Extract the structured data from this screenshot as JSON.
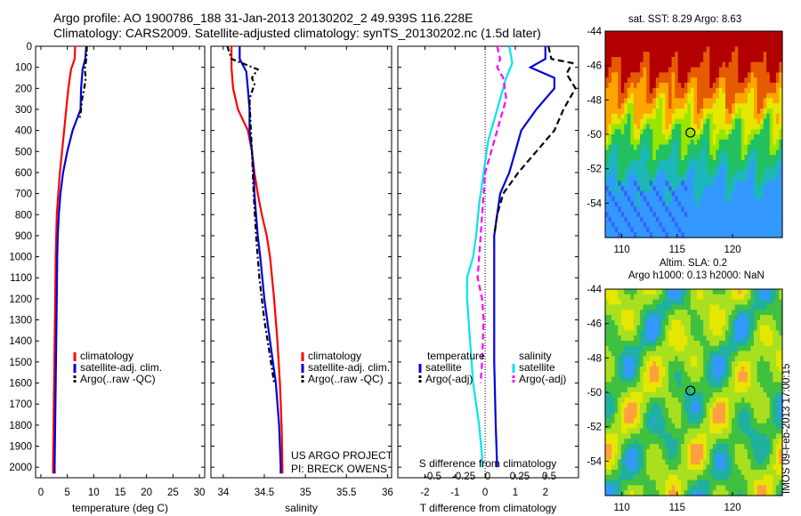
{
  "title_line1": "Argo profile: AO 1900786_188 31-Jan-2013 20130202_2 49.939S 116.228E",
  "title_line2": "Climatology: CARS2009. Satellite-adjusted climatology: synTS_20130202.nc (1.5d later)",
  "sst_title": "sat. SST: 8.29 Argo: 8.63",
  "sla_title1": "Altim. SLA: 0.2",
  "sla_title2": "Argo h1000: 0.13 h2000: NaN",
  "side_text": "IMOS 09-Feb-2013 17:00:15",
  "pi_line1": "US ARGO PROJECT",
  "pi_line2": "PI: BRECK OWENS",
  "colors": {
    "climatology": "#ff0000",
    "satellite": "#0000dd",
    "argo": "#000000",
    "sat_salinity": "#00e5ee",
    "argo_salinity": "#ff00ff"
  },
  "chart_data": [
    {
      "type": "line",
      "xlabel": "temperature (deg C)",
      "xticks": [
        0,
        5,
        10,
        15,
        20,
        25,
        30
      ],
      "xlim": [
        -1,
        31
      ],
      "ylim": [
        2050,
        0
      ],
      "yticks": [
        0,
        100,
        200,
        300,
        400,
        500,
        600,
        700,
        800,
        900,
        1000,
        1100,
        1200,
        1300,
        1400,
        1500,
        1600,
        1700,
        1800,
        1900,
        2000
      ],
      "legend": [
        "climatology",
        "satellite-adj. clim.",
        "Argo(..raw -QC)"
      ],
      "series": [
        {
          "name": "climatology",
          "color": "#ff0000",
          "dash": "",
          "points": [
            [
              6.5,
              0
            ],
            [
              6.4,
              60
            ],
            [
              5.7,
              110
            ],
            [
              5.2,
              200
            ],
            [
              4.8,
              300
            ],
            [
              4.4,
              400
            ],
            [
              4.0,
              500
            ],
            [
              3.6,
              600
            ],
            [
              3.3,
              700
            ],
            [
              3.0,
              800
            ],
            [
              2.9,
              900
            ],
            [
              2.8,
              1000
            ],
            [
              2.7,
              1200
            ],
            [
              2.6,
              1400
            ],
            [
              2.5,
              1600
            ],
            [
              2.4,
              1800
            ],
            [
              2.3,
              2000
            ],
            [
              2.3,
              2030
            ]
          ]
        },
        {
          "name": "satellite-adj. clim.",
          "color": "#0000dd",
          "dash": "",
          "points": [
            [
              8.6,
              0
            ],
            [
              8.4,
              60
            ],
            [
              7.9,
              110
            ],
            [
              7.6,
              200
            ],
            [
              7.5,
              300
            ],
            [
              6.0,
              400
            ],
            [
              5.0,
              500
            ],
            [
              4.2,
              600
            ],
            [
              3.7,
              700
            ],
            [
              3.4,
              800
            ],
            [
              3.2,
              900
            ],
            [
              3.1,
              1000
            ],
            [
              3.0,
              1200
            ],
            [
              2.9,
              1400
            ],
            [
              2.8,
              1600
            ],
            [
              2.7,
              1800
            ],
            [
              2.6,
              2000
            ],
            [
              2.6,
              2030
            ]
          ]
        },
        {
          "name": "Argo(..raw -QC)",
          "color": "#000000",
          "dash": "6,3,2,3",
          "points": [
            [
              8.7,
              0
            ],
            [
              8.6,
              60
            ],
            [
              8.3,
              110
            ],
            [
              8.5,
              150
            ],
            [
              8.2,
              200
            ],
            [
              7.8,
              250
            ],
            [
              7.6,
              300
            ],
            [
              7.3,
              350
            ]
          ]
        }
      ]
    },
    {
      "type": "line",
      "xlabel": "salinity",
      "xticks": [
        34,
        34.5,
        35,
        35.5,
        36
      ],
      "xtick_labels": [
        "34",
        "34.5",
        "35",
        "35.5",
        "36"
      ],
      "xlim": [
        33.85,
        36.05
      ],
      "ylim": [
        2050,
        0
      ],
      "legend": [
        "climatology",
        "satellite-adj. clim.",
        "Argo(..raw -QC)"
      ],
      "series": [
        {
          "name": "climatology",
          "color": "#ff0000",
          "dash": "",
          "points": [
            [
              34.1,
              0
            ],
            [
              34.1,
              100
            ],
            [
              34.12,
              200
            ],
            [
              34.18,
              300
            ],
            [
              34.3,
              400
            ],
            [
              34.35,
              500
            ],
            [
              34.38,
              600
            ],
            [
              34.42,
              700
            ],
            [
              34.47,
              800
            ],
            [
              34.53,
              900
            ],
            [
              34.57,
              1000
            ],
            [
              34.62,
              1200
            ],
            [
              34.66,
              1400
            ],
            [
              34.69,
              1600
            ],
            [
              34.71,
              1800
            ],
            [
              34.72,
              2000
            ],
            [
              34.72,
              2030
            ]
          ]
        },
        {
          "name": "satellite-adj. clim.",
          "color": "#0000dd",
          "dash": "",
          "points": [
            [
              34.2,
              0
            ],
            [
              34.2,
              60
            ],
            [
              34.28,
              120
            ],
            [
              34.3,
              200
            ],
            [
              34.32,
              300
            ],
            [
              34.32,
              400
            ],
            [
              34.35,
              500
            ],
            [
              34.37,
              600
            ],
            [
              34.38,
              700
            ],
            [
              34.4,
              800
            ],
            [
              34.42,
              900
            ],
            [
              34.45,
              1000
            ],
            [
              34.5,
              1200
            ],
            [
              34.57,
              1400
            ],
            [
              34.64,
              1600
            ],
            [
              34.68,
              1800
            ],
            [
              34.7,
              2000
            ],
            [
              34.7,
              2030
            ]
          ]
        },
        {
          "name": "Argo(..raw -QC)",
          "color": "#000000",
          "dash": "6,3,2,3",
          "points": [
            [
              34.05,
              0
            ],
            [
              34.1,
              60
            ],
            [
              34.42,
              110
            ],
            [
              34.35,
              150
            ],
            [
              34.38,
              180
            ],
            [
              34.32,
              250
            ],
            [
              34.33,
              350
            ],
            [
              34.35,
              500
            ],
            [
              34.37,
              700
            ],
            [
              34.4,
              900
            ],
            [
              34.44,
              1100
            ],
            [
              34.5,
              1300
            ],
            [
              34.58,
              1500
            ],
            [
              34.62,
              1600
            ]
          ]
        }
      ]
    },
    {
      "type": "line",
      "xlabel": "T difference from climatology",
      "xticks": [
        -2,
        -1,
        0,
        1,
        2
      ],
      "xlim": [
        -2.9,
        3.1
      ],
      "second_xlabel": "S difference from climatology",
      "second_xticks": [
        "-0.5",
        "-0.25",
        "0",
        "0.25",
        "0.5"
      ],
      "ylim": [
        2050,
        0
      ],
      "legend_titles": [
        "temperature",
        "salinity"
      ],
      "legend": [
        "satellite",
        "Argo(-adj)",
        "satellite",
        "Argo(-adj)"
      ],
      "series": [
        {
          "name": "temperature satellite",
          "color": "#0000dd",
          "dash": "",
          "points": [
            [
              2.0,
              0
            ],
            [
              2.0,
              60
            ],
            [
              1.5,
              100
            ],
            [
              2.3,
              150
            ],
            [
              2.3,
              200
            ],
            [
              2.0,
              250
            ],
            [
              1.7,
              300
            ],
            [
              1.2,
              400
            ],
            [
              1.0,
              500
            ],
            [
              0.8,
              600
            ],
            [
              0.5,
              700
            ],
            [
              0.4,
              800
            ],
            [
              0.3,
              900
            ],
            [
              0.3,
              1000
            ],
            [
              0.3,
              1200
            ],
            [
              0.3,
              1500
            ],
            [
              0.35,
              1800
            ],
            [
              0.4,
              2000
            ]
          ]
        },
        {
          "name": "temperature Argo(-adj)",
          "color": "#000000",
          "dash": "7,4",
          "points": [
            [
              2.1,
              0
            ],
            [
              2.2,
              60
            ],
            [
              2.9,
              80
            ],
            [
              2.7,
              130
            ],
            [
              3.0,
              200
            ],
            [
              2.6,
              300
            ],
            [
              2.3,
              400
            ],
            [
              1.7,
              500
            ],
            [
              1.1,
              600
            ],
            [
              0.6,
              700
            ],
            [
              0.4,
              800
            ],
            [
              0.3,
              900
            ]
          ]
        },
        {
          "name": "salinity satellite",
          "color": "#00e5ee",
          "dash": "",
          "points": [
            [
              0.8,
              0
            ],
            [
              0.9,
              80
            ],
            [
              0.7,
              150
            ],
            [
              0.5,
              250
            ],
            [
              0.3,
              350
            ],
            [
              0.1,
              450
            ],
            [
              0.0,
              550
            ],
            [
              -0.1,
              650
            ],
            [
              -0.2,
              750
            ],
            [
              -0.3,
              900
            ],
            [
              -0.4,
              1000
            ],
            [
              -0.6,
              1100
            ],
            [
              -0.6,
              1200
            ],
            [
              -0.5,
              1400
            ],
            [
              -0.4,
              1600
            ],
            [
              -0.2,
              1800
            ],
            [
              -0.1,
              1950
            ],
            [
              -0.1,
              2000
            ]
          ]
        },
        {
          "name": "salinity Argo(-adj)",
          "color": "#ff00ff",
          "dash": "7,4",
          "points": [
            [
              0.4,
              0
            ],
            [
              0.5,
              60
            ],
            [
              0.4,
              100
            ],
            [
              0.6,
              150
            ],
            [
              0.7,
              250
            ],
            [
              0.5,
              350
            ],
            [
              0.3,
              450
            ],
            [
              0.0,
              600
            ],
            [
              -0.1,
              800
            ],
            [
              -0.2,
              1000
            ],
            [
              -0.25,
              1100
            ],
            [
              -0.1,
              1200
            ],
            [
              -0.05,
              1300
            ],
            [
              -0.1,
              1500
            ],
            [
              -0.15,
              1600
            ]
          ]
        }
      ]
    },
    {
      "type": "heatmap",
      "title": "sat. SST: 8.29 Argo: 8.63",
      "xticks": [
        110,
        115,
        120
      ],
      "yticks": [
        -44,
        -46,
        -48,
        -50,
        -52,
        -54
      ],
      "xlim": [
        108.5,
        124.5
      ],
      "ylim": [
        -56,
        -44
      ],
      "marker": [
        116.2,
        -49.9
      ]
    },
    {
      "type": "heatmap",
      "title": "Altim. SLA: 0.2",
      "subtitle": "Argo h1000: 0.13 h2000: NaN",
      "xticks": [
        110,
        115,
        120
      ],
      "yticks": [
        -44,
        -46,
        -48,
        -50,
        -52,
        -54
      ],
      "xlim": [
        108.5,
        124.5
      ],
      "ylim": [
        -56,
        -44
      ],
      "marker": [
        116.2,
        -49.9
      ]
    }
  ]
}
